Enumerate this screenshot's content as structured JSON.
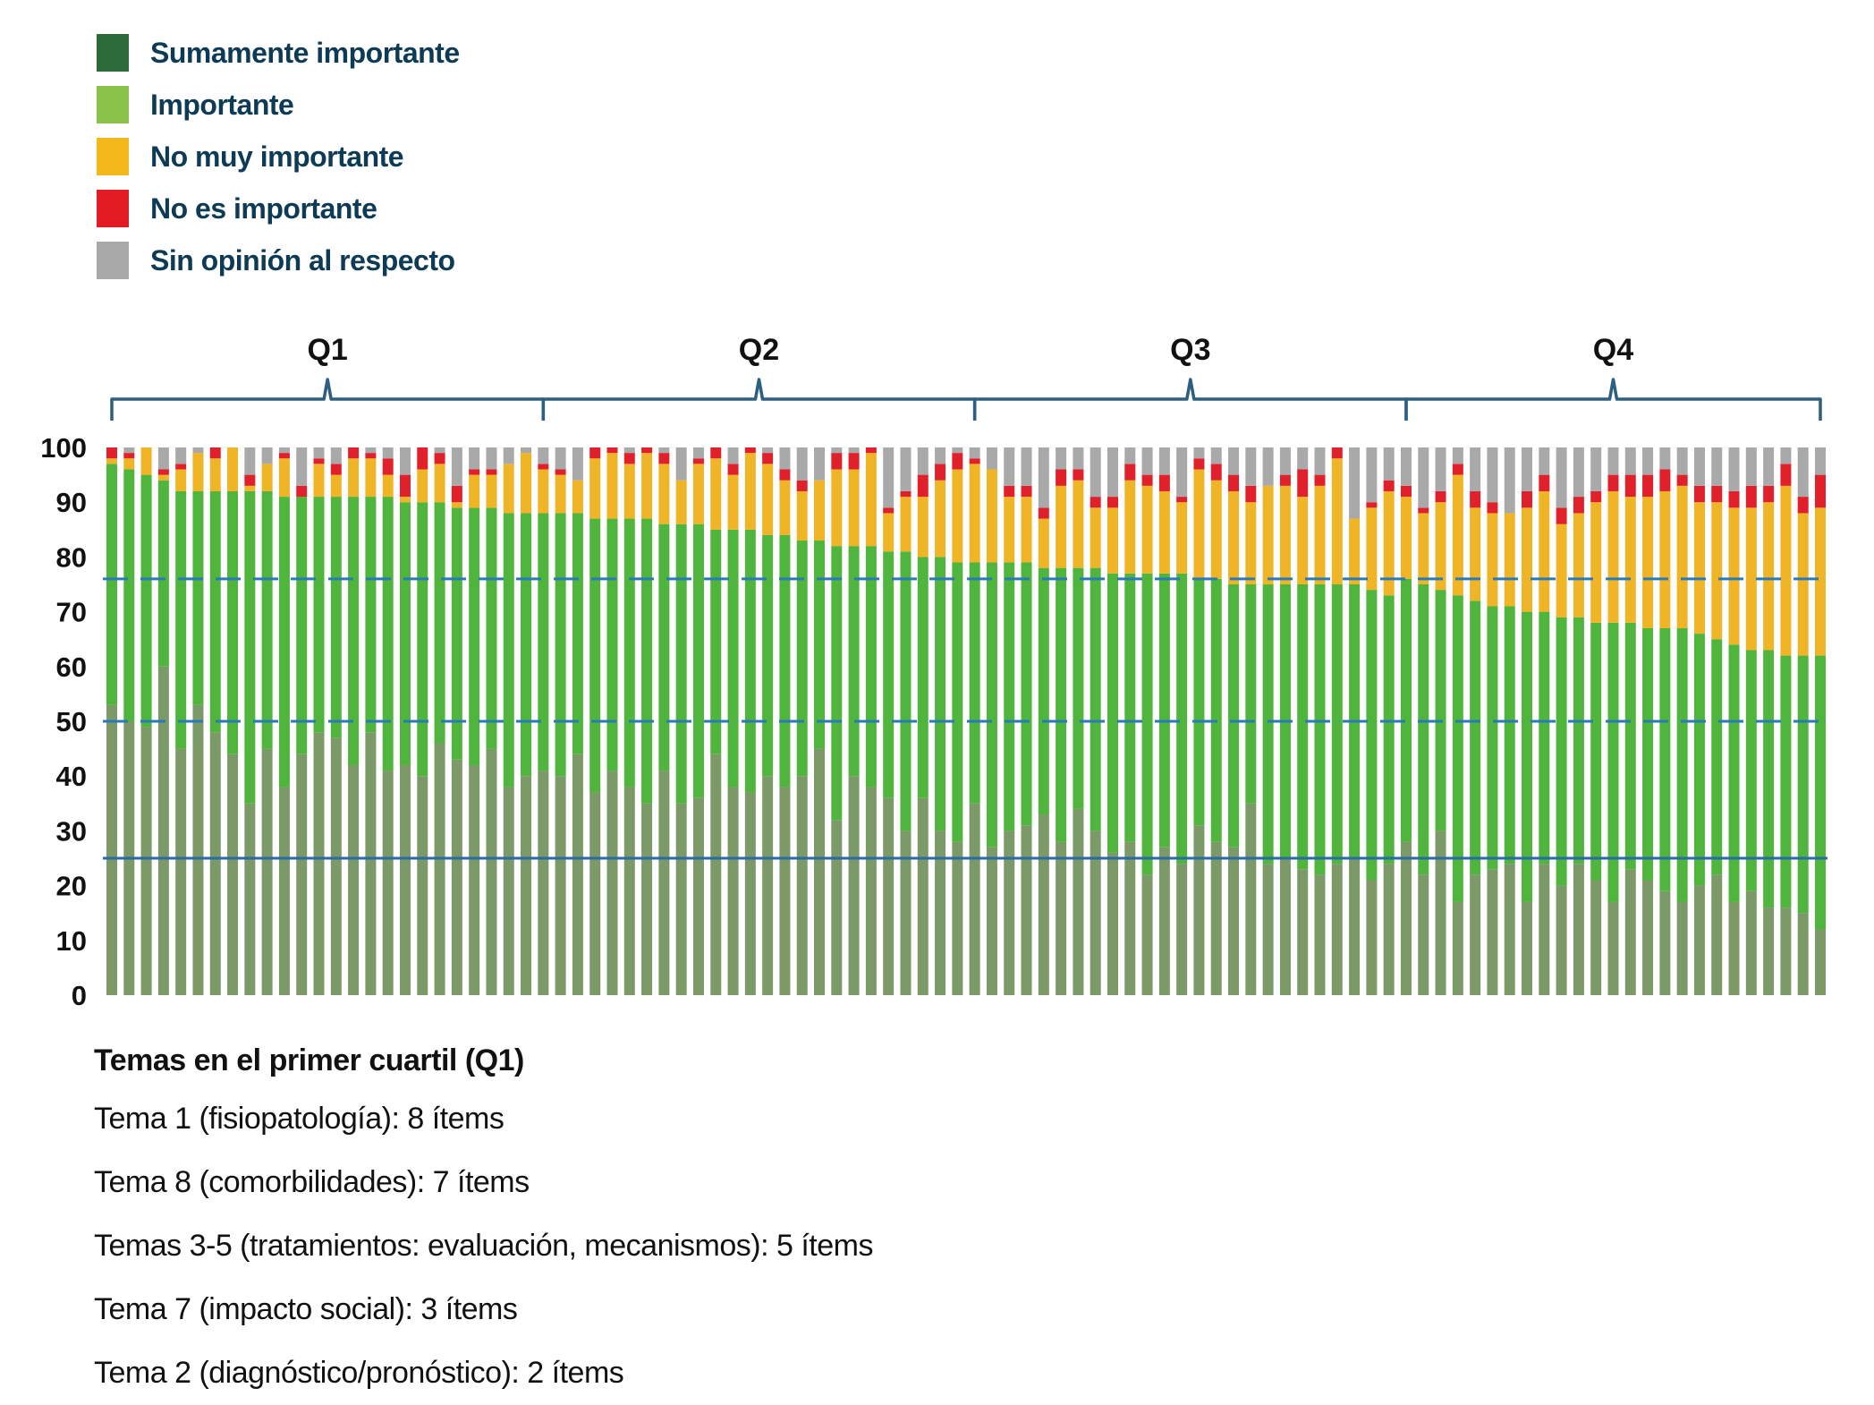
{
  "legend": [
    {
      "label": "Sumamente importante",
      "color": "#2b6b3a"
    },
    {
      "label": "Importante",
      "color": "#8bc34a"
    },
    {
      "label": "No muy importante",
      "color": "#f2b81c"
    },
    {
      "label": "No es importante",
      "color": "#e31b23"
    },
    {
      "label": "Sin opinión al respecto",
      "color": "#a9a9a9"
    }
  ],
  "chart_data": {
    "type": "bar",
    "stacked": true,
    "title": "",
    "xlabel": "",
    "ylabel": "",
    "ylim": [
      0,
      100
    ],
    "yticks": [
      "0",
      "10",
      "20",
      "30",
      "40",
      "50",
      "60",
      "70",
      "80",
      "90",
      "100"
    ],
    "grid": false,
    "legend_placement": "top-left",
    "reference_lines": [
      {
        "value": 76,
        "style": "dashed",
        "color": "#2a7ab8"
      },
      {
        "value": 50,
        "style": "dashed",
        "color": "#2a7ab8"
      },
      {
        "value": 25,
        "style": "solid",
        "color": "#2a6aa8"
      }
    ],
    "groups": [
      {
        "label": "Q1",
        "from_bar": 1,
        "to_bar": 25
      },
      {
        "label": "Q2",
        "from_bar": 26,
        "to_bar": 50
      },
      {
        "label": "Q3",
        "from_bar": 51,
        "to_bar": 75
      },
      {
        "label": "Q4",
        "from_bar": 76,
        "to_bar": 100
      }
    ],
    "bar_count": 100,
    "series": [
      {
        "name": "Sumamente importante",
        "color": "#7b9a68",
        "values": [
          53,
          50,
          49,
          60,
          45,
          53,
          48,
          44,
          35,
          45,
          38,
          44,
          48,
          47,
          42,
          48,
          41,
          42,
          40,
          46,
          43,
          42,
          45,
          38,
          40,
          41,
          40,
          44,
          37,
          41,
          38,
          35,
          41,
          35,
          36,
          44,
          38,
          37,
          40,
          38,
          40,
          45,
          32,
          40,
          38,
          36,
          30,
          36,
          30,
          28,
          35,
          27,
          30,
          31,
          33,
          28,
          34,
          30,
          26,
          28,
          22,
          27,
          24,
          31,
          28,
          27,
          35,
          24,
          25,
          23,
          22,
          24,
          25,
          21,
          24,
          28,
          22,
          30,
          17,
          22,
          23,
          24,
          17,
          24,
          20,
          24,
          21,
          17,
          23,
          21,
          19,
          17,
          20,
          22,
          17,
          19,
          16,
          16,
          15,
          12
        ]
      },
      {
        "name": "Importante",
        "color": "#4fb53c",
        "values": [
          44,
          46,
          46,
          34,
          47,
          39,
          44,
          48,
          57,
          47,
          53,
          47,
          43,
          44,
          49,
          43,
          50,
          48,
          50,
          44,
          46,
          47,
          44,
          50,
          48,
          47,
          48,
          44,
          50,
          46,
          49,
          52,
          45,
          51,
          50,
          41,
          47,
          48,
          44,
          46,
          43,
          38,
          50,
          42,
          44,
          45,
          51,
          44,
          50,
          51,
          44,
          52,
          49,
          48,
          45,
          50,
          44,
          48,
          51,
          49,
          55,
          50,
          53,
          45,
          48,
          48,
          40,
          51,
          50,
          52,
          53,
          51,
          50,
          53,
          49,
          48,
          53,
          44,
          56,
          50,
          48,
          47,
          53,
          46,
          49,
          45,
          47,
          51,
          45,
          46,
          48,
          50,
          46,
          43,
          47,
          44,
          47,
          46,
          47,
          50
        ]
      },
      {
        "name": "No muy importante",
        "color": "#f0b427",
        "values": [
          1,
          2,
          5,
          1,
          4,
          7,
          6,
          8,
          1,
          5,
          7,
          0,
          6,
          4,
          7,
          7,
          4,
          1,
          6,
          7,
          1,
          6,
          6,
          9,
          11,
          8,
          7,
          6,
          11,
          12,
          10,
          12,
          11,
          8,
          11,
          13,
          10,
          14,
          13,
          10,
          9,
          11,
          14,
          14,
          17,
          7,
          10,
          11,
          14,
          17,
          18,
          17,
          12,
          12,
          9,
          15,
          16,
          11,
          12,
          17,
          16,
          15,
          13,
          20,
          18,
          17,
          15,
          18,
          18,
          16,
          18,
          23,
          12,
          15,
          19,
          15,
          13,
          16,
          22,
          17,
          17,
          17,
          19,
          22,
          17,
          19,
          22,
          24,
          23,
          24,
          25,
          26,
          24,
          25,
          25,
          26,
          27,
          31,
          26,
          27
        ]
      },
      {
        "name": "No es importante",
        "color": "#e0202a",
        "values": [
          2,
          1,
          0,
          1,
          1,
          0,
          2,
          0,
          2,
          0,
          1,
          2,
          1,
          2,
          2,
          1,
          3,
          4,
          4,
          2,
          3,
          1,
          1,
          0,
          0,
          1,
          1,
          0,
          2,
          1,
          2,
          1,
          2,
          0,
          1,
          2,
          2,
          1,
          2,
          2,
          2,
          0,
          3,
          3,
          1,
          1,
          1,
          4,
          3,
          3,
          1,
          0,
          2,
          2,
          2,
          3,
          2,
          2,
          2,
          3,
          2,
          3,
          1,
          2,
          3,
          3,
          3,
          0,
          2,
          5,
          2,
          2,
          0,
          1,
          2,
          2,
          1,
          2,
          2,
          3,
          2,
          0,
          3,
          3,
          3,
          3,
          2,
          3,
          4,
          4,
          4,
          2,
          3,
          3,
          3,
          4,
          3,
          4,
          3,
          6
        ]
      },
      {
        "name": "Sin opinión al respecto",
        "color": "#a9a9a9",
        "values": [
          0,
          1,
          0,
          4,
          3,
          1,
          0,
          0,
          5,
          3,
          1,
          7,
          2,
          3,
          0,
          1,
          2,
          5,
          0,
          1,
          7,
          4,
          4,
          3,
          1,
          3,
          4,
          6,
          0,
          0,
          1,
          0,
          1,
          6,
          2,
          0,
          3,
          0,
          1,
          4,
          6,
          6,
          1,
          1,
          0,
          11,
          8,
          5,
          3,
          1,
          2,
          4,
          7,
          7,
          11,
          4,
          4,
          9,
          9,
          3,
          5,
          5,
          9,
          2,
          3,
          5,
          7,
          7,
          5,
          4,
          5,
          0,
          13,
          10,
          6,
          7,
          11,
          8,
          3,
          8,
          10,
          12,
          8,
          5,
          11,
          9,
          8,
          5,
          5,
          5,
          4,
          5,
          7,
          7,
          8,
          7,
          7,
          3,
          9,
          5
        ]
      }
    ]
  },
  "notes": {
    "title": "Temas en el primer cuartil (Q1)",
    "lines": [
      "Tema 1 (fisiopatología): 8 ítems",
      "Tema 8 (comorbilidades): 7 ítems",
      "Temas 3-5 (tratamientos: evaluación, mecanismos): 5 ítems",
      "Tema 7 (impacto social): 3 ítems",
      "Tema 2 (diagnóstico/pronóstico): 2 ítems"
    ]
  }
}
